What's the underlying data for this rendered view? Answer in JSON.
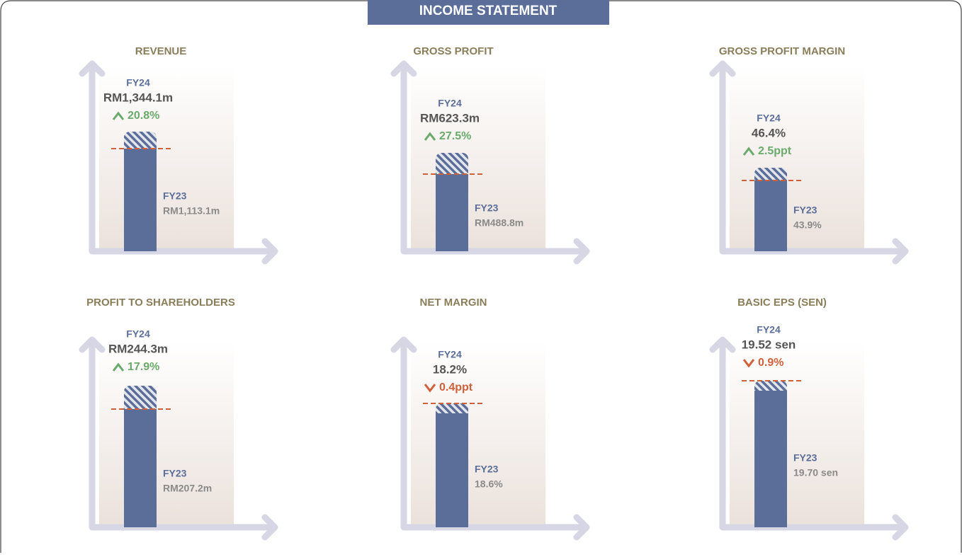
{
  "header": {
    "title": "INCOME STATEMENT"
  },
  "panels": [
    {
      "title": "REVENUE",
      "current_label": "FY24",
      "current_value": "RM1,344.1m",
      "direction": "up",
      "change": "20.8%",
      "previous_label": "FY23",
      "previous_value": "RM1,113.1m"
    },
    {
      "title": "GROSS PROFIT",
      "current_label": "FY24",
      "current_value": "RM623.3m",
      "direction": "up",
      "change": "27.5%",
      "previous_label": "FY23",
      "previous_value": "RM488.8m"
    },
    {
      "title": "GROSS PROFIT MARGIN",
      "current_label": "FY24",
      "current_value": "46.4%",
      "direction": "up",
      "change": "2.5ppt",
      "previous_label": "FY23",
      "previous_value": "43.9%"
    },
    {
      "title": "PROFIT TO SHAREHOLDERS",
      "current_label": "FY24",
      "current_value": "RM244.3m",
      "direction": "up",
      "change": "17.9%",
      "previous_label": "FY23",
      "previous_value": "RM207.2m"
    },
    {
      "title": "NET MARGIN",
      "current_label": "FY24",
      "current_value": "18.2%",
      "direction": "down",
      "change": "0.4ppt",
      "previous_label": "FY23",
      "previous_value": "18.6%"
    },
    {
      "title": "BASIC EPS (SEN)",
      "current_label": "FY24",
      "current_value": "19.52 sen",
      "direction": "down",
      "change": "0.9%",
      "previous_label": "FY23",
      "previous_value": "19.70 sen"
    }
  ]
}
